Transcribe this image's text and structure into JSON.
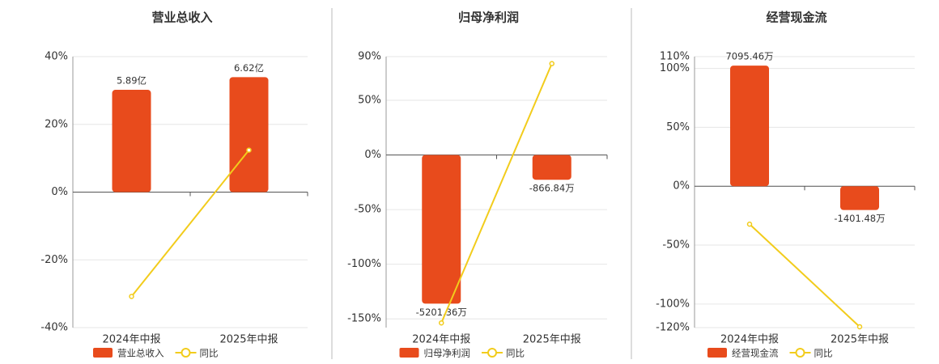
{
  "chart_data": [
    {
      "type": "bar",
      "title": "营业总收入",
      "categories": [
        "2024年中报",
        "2025年中报"
      ],
      "series": [
        {
          "name": "营业总收入",
          "type": "bar",
          "axis": "y2",
          "color": "#e84b1c",
          "values": [
            5.89,
            6.62
          ],
          "value_labels": [
            "5.89亿",
            "6.62亿"
          ]
        },
        {
          "name": "同比",
          "type": "line",
          "color": "#f2cc1c",
          "values": [
            -30.8,
            12.4
          ]
        }
      ],
      "ylim": [
        -40,
        40
      ],
      "yticks": [
        {
          "value": 40,
          "label": "40%"
        },
        {
          "value": 20,
          "label": "20%"
        },
        {
          "value": 0,
          "label": "0%"
        },
        {
          "value": -20,
          "label": "-20%"
        },
        {
          "value": -40,
          "label": "-40%"
        }
      ],
      "y2lim": [
        -7.8,
        7.8
      ],
      "grid": true
    },
    {
      "type": "bar",
      "title": "归母净利润",
      "categories": [
        "2024年中报",
        "2025年中报"
      ],
      "series": [
        {
          "name": "归母净利润",
          "type": "bar",
          "axis": "y2",
          "color": "#e84b1c",
          "values": [
            -5201.36,
            -866.84
          ],
          "value_labels": [
            "-5201.36万",
            "-866.84万"
          ]
        },
        {
          "name": "同比",
          "type": "line",
          "color": "#f2cc1c",
          "values": [
            -153.7,
            83.6
          ]
        }
      ],
      "ylim": [
        -158,
        90
      ],
      "yticks": [
        {
          "value": 90,
          "label": "90%"
        },
        {
          "value": 50,
          "label": "50%"
        },
        {
          "value": 0,
          "label": "0%"
        },
        {
          "value": -50,
          "label": "-50%"
        },
        {
          "value": -100,
          "label": "-100%"
        },
        {
          "value": -150,
          "label": "-150%"
        }
      ],
      "y2lim": [
        -6039,
        3440
      ],
      "grid": true
    },
    {
      "type": "bar",
      "title": "经营现金流",
      "categories": [
        "2024年中报",
        "2025年中报"
      ],
      "series": [
        {
          "name": "经营现金流",
          "type": "bar",
          "axis": "y2",
          "color": "#e84b1c",
          "values": [
            7095.46,
            -1401.48
          ],
          "value_labels": [
            "7095.46万",
            "-1401.48万"
          ]
        },
        {
          "name": "同比",
          "type": "line",
          "color": "#f2cc1c",
          "values": [
            -32.2,
            -119.3
          ]
        }
      ],
      "ylim": [
        -120,
        110
      ],
      "yticks": [
        {
          "value": 110,
          "label": "110%"
        },
        {
          "value": 100,
          "label": "100%"
        },
        {
          "value": 50,
          "label": "50%"
        },
        {
          "value": 0,
          "label": "0%"
        },
        {
          "value": -50,
          "label": "-50%"
        },
        {
          "value": -100,
          "label": "-100%"
        },
        {
          "value": -120,
          "label": "-120%"
        }
      ],
      "y2lim": [
        -8315,
        7622
      ],
      "grid": true
    }
  ]
}
